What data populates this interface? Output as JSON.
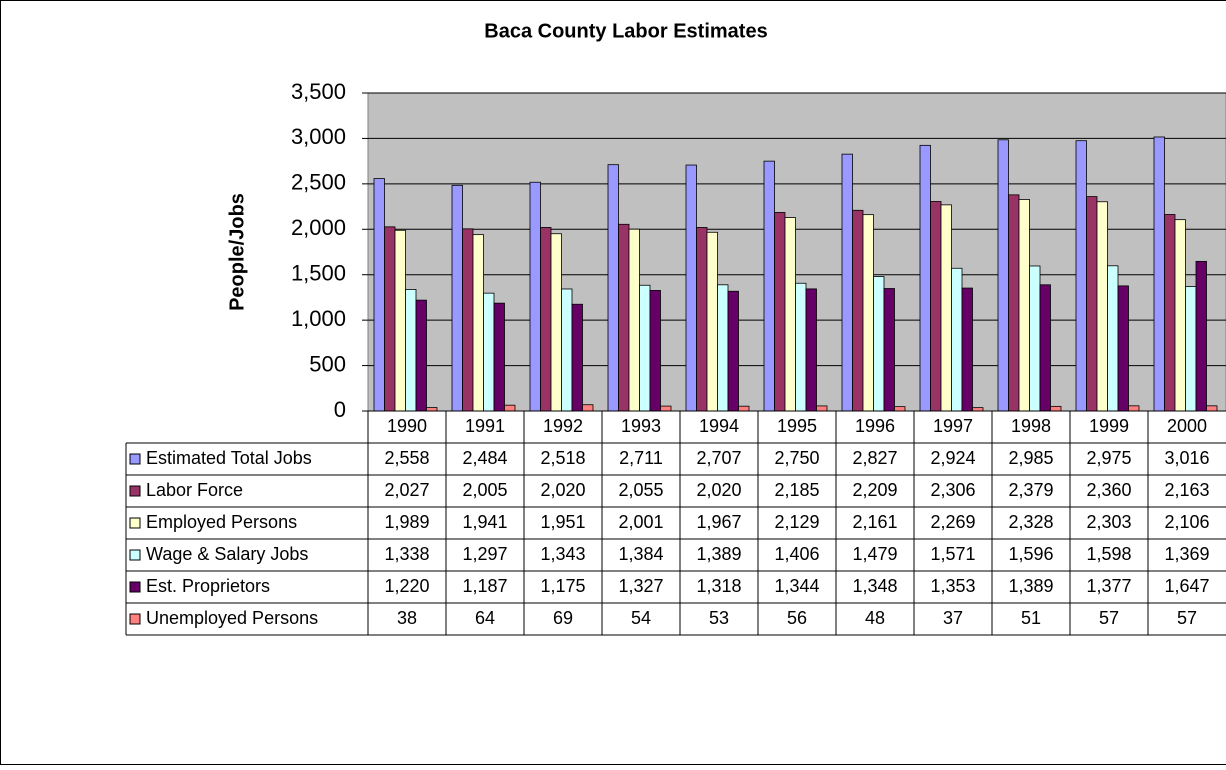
{
  "chart_data": {
    "type": "bar",
    "title": "Baca County Labor Estimates",
    "y_label": "People/Jobs",
    "categories": [
      "1990",
      "1991",
      "1992",
      "1993",
      "1994",
      "1995",
      "1996",
      "1997",
      "1998",
      "1999",
      "2000"
    ],
    "series": [
      {
        "name": "Estimated Total Jobs",
        "color": "#9999ff",
        "values": [
          2558,
          2484,
          2518,
          2711,
          2707,
          2750,
          2827,
          2924,
          2985,
          2975,
          3016
        ],
        "value_labels": [
          "2,558",
          "2,484",
          "2,518",
          "2,711",
          "2,707",
          "2,750",
          "2,827",
          "2,924",
          "2,985",
          "2,975",
          "3,016"
        ]
      },
      {
        "name": "Labor Force",
        "color": "#993366",
        "values": [
          2027,
          2005,
          2020,
          2055,
          2020,
          2185,
          2209,
          2306,
          2379,
          2360,
          2163
        ],
        "value_labels": [
          "2,027",
          "2,005",
          "2,020",
          "2,055",
          "2,020",
          "2,185",
          "2,209",
          "2,306",
          "2,379",
          "2,360",
          "2,163"
        ]
      },
      {
        "name": "Employed Persons",
        "color": "#ffffcc",
        "values": [
          1989,
          1941,
          1951,
          2001,
          1967,
          2129,
          2161,
          2269,
          2328,
          2303,
          2106
        ],
        "value_labels": [
          "1,989",
          "1,941",
          "1,951",
          "2,001",
          "1,967",
          "2,129",
          "2,161",
          "2,269",
          "2,328",
          "2,303",
          "2,106"
        ]
      },
      {
        "name": "Wage & Salary Jobs",
        "color": "#ccffff",
        "values": [
          1338,
          1297,
          1343,
          1384,
          1389,
          1406,
          1479,
          1571,
          1596,
          1598,
          1369
        ],
        "value_labels": [
          "1,338",
          "1,297",
          "1,343",
          "1,384",
          "1,389",
          "1,406",
          "1,479",
          "1,571",
          "1,596",
          "1,598",
          "1,369"
        ]
      },
      {
        "name": "Est. Proprietors",
        "color": "#660066",
        "values": [
          1220,
          1187,
          1175,
          1327,
          1318,
          1344,
          1348,
          1353,
          1389,
          1377,
          1647
        ],
        "value_labels": [
          "1,220",
          "1,187",
          "1,175",
          "1,327",
          "1,318",
          "1,344",
          "1,348",
          "1,353",
          "1,389",
          "1,377",
          "1,647"
        ]
      },
      {
        "name": "Unemployed Persons",
        "color": "#ff8080",
        "values": [
          38,
          64,
          69,
          54,
          53,
          56,
          48,
          37,
          51,
          57,
          57
        ]
      }
    ],
    "ylim": [
      0,
      3500
    ],
    "yticks": [
      0,
      500,
      {
        "value": 1000,
        "label": "1,000"
      },
      {
        "value": 1500,
        "label": "1,500"
      },
      {
        "value": 2000,
        "label": "2,000"
      },
      {
        "value": 2500,
        "label": "2,500"
      },
      {
        "value": 3000,
        "label": "3,000"
      },
      {
        "value": 3500,
        "label": "3,500"
      }
    ],
    "grid": true,
    "plot_background": "#c0c0c0"
  }
}
